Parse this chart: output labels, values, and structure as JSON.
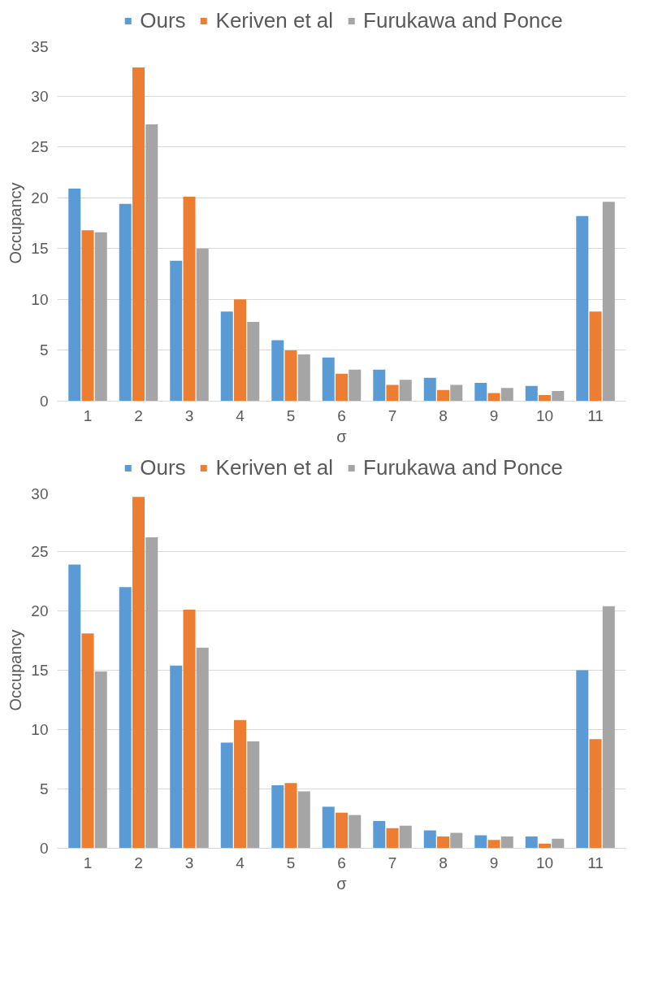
{
  "chart_data": [
    {
      "type": "bar",
      "xlabel": "σ",
      "ylabel": "Occupancy",
      "categories": [
        "1",
        "2",
        "3",
        "4",
        "5",
        "6",
        "7",
        "8",
        "9",
        "10",
        "11"
      ],
      "ylim": [
        0,
        35
      ],
      "yticks": [
        0,
        5,
        10,
        15,
        20,
        25,
        30,
        35
      ],
      "grid": "y",
      "legend": "top",
      "series": [
        {
          "name": "Ours",
          "color": "#5b9bd5",
          "values": [
            20.9,
            19.4,
            13.8,
            8.8,
            6.0,
            4.3,
            3.1,
            2.3,
            1.8,
            1.5,
            18.2
          ]
        },
        {
          "name": "Keriven et al",
          "color": "#ed7d31",
          "values": [
            16.8,
            32.8,
            20.1,
            10.0,
            5.0,
            2.7,
            1.6,
            1.1,
            0.8,
            0.6,
            8.8
          ]
        },
        {
          "name": "Furukawa and Ponce",
          "color": "#a5a5a5",
          "values": [
            16.6,
            27.2,
            15.0,
            7.8,
            4.6,
            3.1,
            2.1,
            1.6,
            1.3,
            1.0,
            19.6
          ]
        }
      ]
    },
    {
      "type": "bar",
      "xlabel": "σ",
      "ylabel": "Occupancy",
      "categories": [
        "1",
        "2",
        "3",
        "4",
        "5",
        "6",
        "7",
        "8",
        "9",
        "10",
        "11"
      ],
      "ylim": [
        0,
        30
      ],
      "yticks": [
        0,
        5,
        10,
        15,
        20,
        25,
        30
      ],
      "grid": "y",
      "legend": "top",
      "series": [
        {
          "name": "Ours",
          "color": "#5b9bd5",
          "values": [
            23.9,
            22.0,
            15.4,
            8.9,
            5.3,
            3.5,
            2.3,
            1.5,
            1.1,
            1.0,
            15.0
          ]
        },
        {
          "name": "Keriven et al",
          "color": "#ed7d31",
          "values": [
            18.1,
            29.6,
            20.1,
            10.8,
            5.5,
            3.0,
            1.7,
            1.0,
            0.7,
            0.4,
            9.2
          ]
        },
        {
          "name": "Furukawa and Ponce",
          "color": "#a5a5a5",
          "values": [
            14.9,
            26.2,
            16.9,
            9.0,
            4.8,
            2.8,
            1.9,
            1.3,
            1.0,
            0.8,
            20.4
          ]
        }
      ]
    }
  ]
}
